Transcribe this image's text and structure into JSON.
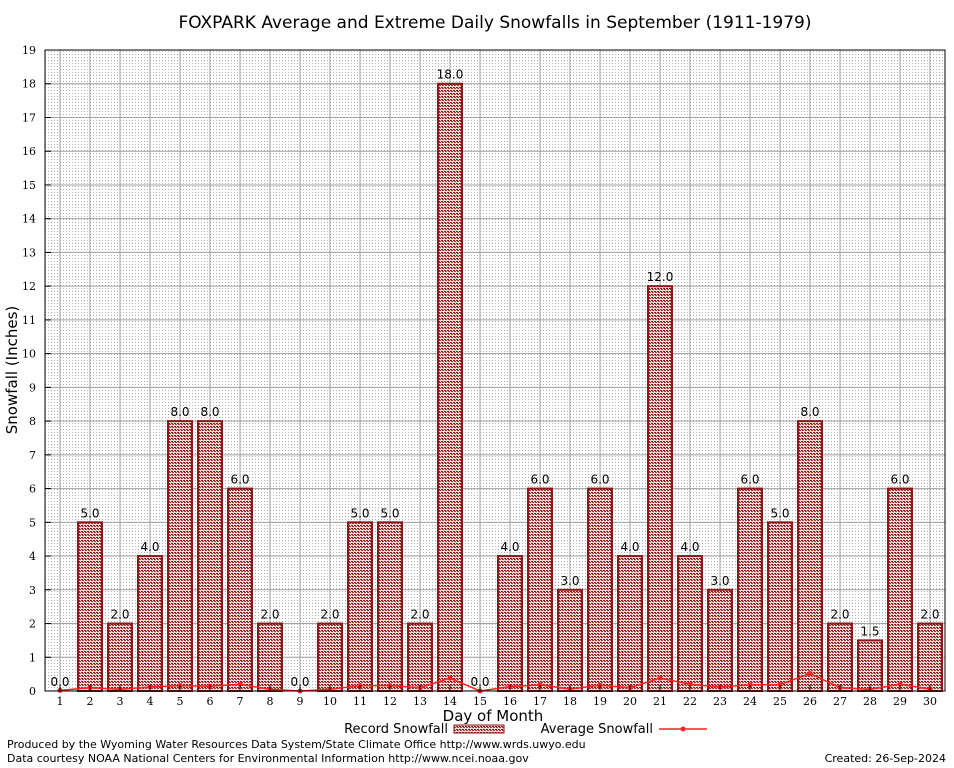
{
  "chart_data": {
    "type": "bar",
    "title": "FOXPARK Average and Extreme Daily Snowfalls in September (1911-1979)",
    "xlabel": "Day of Month",
    "ylabel": "Snowfall (Inches)",
    "ylim": [
      0,
      19
    ],
    "grid": true,
    "categories": [
      "1",
      "2",
      "3",
      "4",
      "5",
      "6",
      "7",
      "8",
      "9",
      "10",
      "11",
      "12",
      "13",
      "14",
      "15",
      "16",
      "17",
      "18",
      "19",
      "20",
      "21",
      "22",
      "23",
      "24",
      "25",
      "26",
      "27",
      "28",
      "29",
      "30"
    ],
    "series": [
      {
        "name": "Record Snowfall",
        "type": "bar",
        "color": "#8b1a1a",
        "values": [
          0.0,
          5.0,
          2.0,
          4.0,
          8.0,
          8.0,
          6.0,
          2.0,
          0.0,
          2.0,
          5.0,
          5.0,
          2.0,
          18.0,
          0.0,
          4.0,
          6.0,
          3.0,
          6.0,
          4.0,
          12.0,
          4.0,
          3.0,
          6.0,
          5.0,
          8.0,
          2.0,
          1.5,
          6.0,
          2.0
        ],
        "labels": [
          "0.0",
          "5.0",
          "2.0",
          "4.0",
          "8.0",
          "8.0",
          "6.0",
          "2.0",
          "0.0",
          "2.0",
          "5.0",
          "5.0",
          "2.0",
          "18.0",
          "0.0",
          "4.0",
          "6.0",
          "3.0",
          "6.0",
          "4.0",
          "12.0",
          "4.0",
          "3.0",
          "6.0",
          "5.0",
          "8.0",
          "2.0",
          "1.5",
          "6.0",
          "2.0"
        ]
      },
      {
        "name": "Average Snowfall",
        "type": "line",
        "color": "#ff2020",
        "values": [
          0.02,
          0.1,
          0.05,
          0.12,
          0.16,
          0.14,
          0.2,
          0.05,
          0.0,
          0.05,
          0.16,
          0.16,
          0.1,
          0.38,
          0.0,
          0.13,
          0.18,
          0.06,
          0.17,
          0.1,
          0.38,
          0.2,
          0.12,
          0.18,
          0.19,
          0.52,
          0.1,
          0.05,
          0.2,
          0.06
        ]
      }
    ]
  },
  "footer": {
    "produced_by": "Produced by the Wyoming Water Resources Data System/State Climate Office http://www.wrds.uwyo.edu",
    "courtesy": "Data courtesy NOAA National Centers for Environmental Information http://www.ncei.noaa.gov",
    "created": "Created:  26-Sep-2024"
  }
}
